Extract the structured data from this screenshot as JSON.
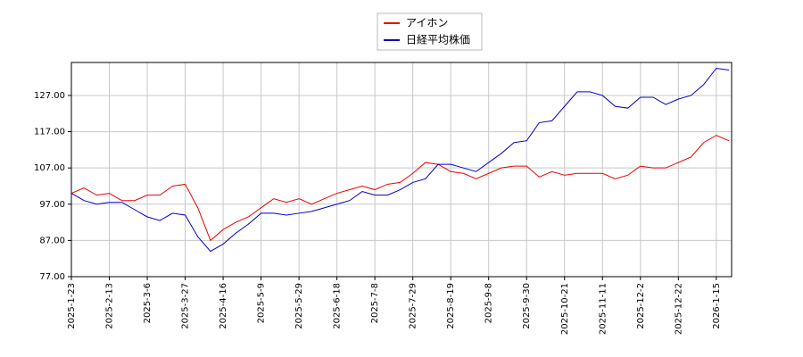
{
  "chart_data": {
    "type": "line",
    "categories": [
      "2025-1-23",
      null,
      null,
      "2025-2-13",
      null,
      null,
      "2025-3-6",
      null,
      null,
      "2025-3-27",
      null,
      null,
      "2025-4-16",
      null,
      null,
      "2025-5-9",
      null,
      null,
      "2025-5-29",
      null,
      null,
      "2025-6-18",
      null,
      null,
      "2025-7-8",
      null,
      null,
      "2025-7-29",
      null,
      null,
      "2025-8-19",
      null,
      null,
      "2025-9-8",
      null,
      null,
      "2025-9-30",
      null,
      null,
      "2025-10-21",
      null,
      null,
      "2025-11-11",
      null,
      null,
      "2025-12-2",
      null,
      null,
      "2025-12-22",
      null,
      null,
      "2026-1-15",
      null
    ],
    "series": [
      {
        "name": "アイホン",
        "color": "#ee0000",
        "values": [
          100,
          101.5,
          99.5,
          100,
          98,
          98,
          99.5,
          99.5,
          102,
          102.5,
          96,
          87,
          90,
          92,
          93.5,
          96,
          98.5,
          97.5,
          98.5,
          97,
          98.5,
          100,
          101,
          102,
          101,
          102.5,
          103,
          105.5,
          108.5,
          108,
          106,
          105.5,
          104,
          105.5,
          107,
          107.5,
          107.5,
          104.5,
          106,
          105,
          105.5,
          105.5,
          105.5,
          104,
          105,
          107.5,
          107,
          107,
          108.5,
          110,
          114,
          116,
          114.5
        ]
      },
      {
        "name": "日経平均株価",
        "color": "#0000cc",
        "values": [
          100,
          98,
          97,
          97.5,
          97.5,
          95.5,
          93.5,
          92.5,
          94.5,
          94,
          88,
          84,
          86,
          89,
          91.5,
          94.5,
          94.5,
          94,
          94.5,
          95,
          96,
          97,
          98,
          100.5,
          99.5,
          99.5,
          101,
          103,
          104,
          108,
          108,
          107,
          106,
          108.5,
          111,
          114,
          114.5,
          119.5,
          120,
          124,
          128,
          128,
          127,
          124,
          123.5,
          126.5,
          126.5,
          124.5,
          126,
          127,
          130,
          134.5,
          134
        ]
      }
    ],
    "ylim": [
      77,
      136.1
    ],
    "yticks": [
      {
        "value": 77,
        "label": "77.00"
      },
      {
        "value": 87,
        "label": "87.00"
      },
      {
        "value": 97,
        "label": "97.00"
      },
      {
        "value": 107,
        "label": "107.00"
      },
      {
        "value": 117,
        "label": "117.00"
      },
      {
        "value": 127,
        "label": "127.00"
      }
    ],
    "grid": true
  }
}
